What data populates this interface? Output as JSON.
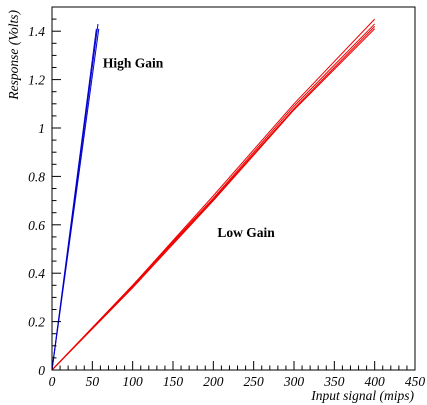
{
  "chart_data": {
    "type": "line",
    "title": "",
    "xlabel": "Input signal (mips)",
    "ylabel": "Response (Volts)",
    "xlim": [
      0,
      450
    ],
    "ylim": [
      0,
      1.5
    ],
    "grid": false,
    "x_ticks": [
      0,
      50,
      100,
      150,
      200,
      250,
      300,
      350,
      400,
      450
    ],
    "x_tick_labels": [
      "0",
      "50",
      "100",
      "150",
      "200",
      "250",
      "300",
      "350",
      "400",
      "450"
    ],
    "y_ticks": [
      0,
      0.2,
      0.4,
      0.6,
      0.8,
      1.0,
      1.2,
      1.4
    ],
    "y_tick_labels": [
      "0",
      "0.2",
      "0.4",
      "0.6",
      "0.8",
      "1",
      "1.2",
      "1.4"
    ],
    "annotations": [
      {
        "text": "High Gain",
        "x": 63,
        "y": 1.25
      },
      {
        "text": "Low Gain",
        "x": 205,
        "y": 0.55
      }
    ],
    "series": [
      {
        "group": "high",
        "color": "#0000cc",
        "x": [
          0,
          55
        ],
        "y": [
          0.0,
          1.41
        ]
      },
      {
        "group": "high",
        "color": "#0000cc",
        "x": [
          0,
          57
        ],
        "y": [
          0.0,
          1.43
        ]
      },
      {
        "group": "high",
        "color": "#0000cc",
        "x": [
          0,
          58
        ],
        "y": [
          0.0,
          1.41
        ]
      },
      {
        "group": "low",
        "color": "#ee0000",
        "x": [
          0,
          100,
          200,
          300,
          400
        ],
        "y": [
          0.0,
          0.35,
          0.72,
          1.1,
          1.45
        ]
      },
      {
        "group": "low",
        "color": "#ee0000",
        "x": [
          0,
          100,
          200,
          300,
          400
        ],
        "y": [
          0.0,
          0.35,
          0.71,
          1.09,
          1.43
        ]
      },
      {
        "group": "low",
        "color": "#ee0000",
        "x": [
          0,
          100,
          200,
          300,
          400
        ],
        "y": [
          0.0,
          0.345,
          0.705,
          1.08,
          1.42
        ]
      },
      {
        "group": "low",
        "color": "#ee0000",
        "x": [
          0,
          100,
          200,
          300,
          400
        ],
        "y": [
          0.0,
          0.34,
          0.7,
          1.075,
          1.41
        ]
      }
    ]
  }
}
